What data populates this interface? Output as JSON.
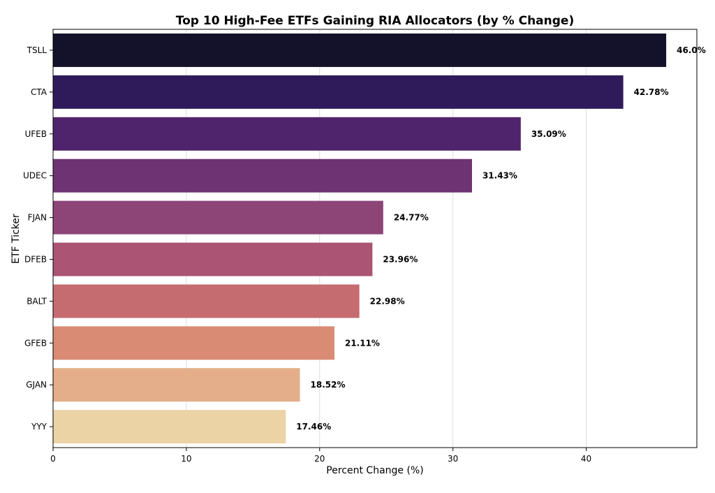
{
  "chart_data": {
    "type": "bar",
    "orientation": "horizontal",
    "title": "Top 10 High-Fee ETFs Gaining RIA Allocators (by % Change)",
    "xlabel": "Percent Change (%)",
    "ylabel": "ETF Ticker",
    "categories": [
      "TSLL",
      "CTA",
      "UFEB",
      "UDEC",
      "FJAN",
      "DFEB",
      "BALT",
      "GFEB",
      "GJAN",
      "YYY"
    ],
    "values": [
      46.0,
      42.78,
      35.09,
      31.43,
      24.77,
      23.96,
      22.98,
      21.11,
      18.52,
      17.46
    ],
    "data_labels": [
      "46.0%",
      "42.78%",
      "35.09%",
      "31.43%",
      "24.77%",
      "23.96%",
      "22.98%",
      "21.11%",
      "18.52%",
      "17.46%"
    ],
    "colors": [
      "#14112b",
      "#2f1b5a",
      "#50246d",
      "#6d3372",
      "#8d4578",
      "#ab5473",
      "#c56c70",
      "#d98b74",
      "#e4ae8a",
      "#ebd3a6"
    ],
    "xlim": [
      0,
      48.3
    ],
    "xticks": [
      0,
      10,
      20,
      30,
      40
    ],
    "grid": "x"
  }
}
